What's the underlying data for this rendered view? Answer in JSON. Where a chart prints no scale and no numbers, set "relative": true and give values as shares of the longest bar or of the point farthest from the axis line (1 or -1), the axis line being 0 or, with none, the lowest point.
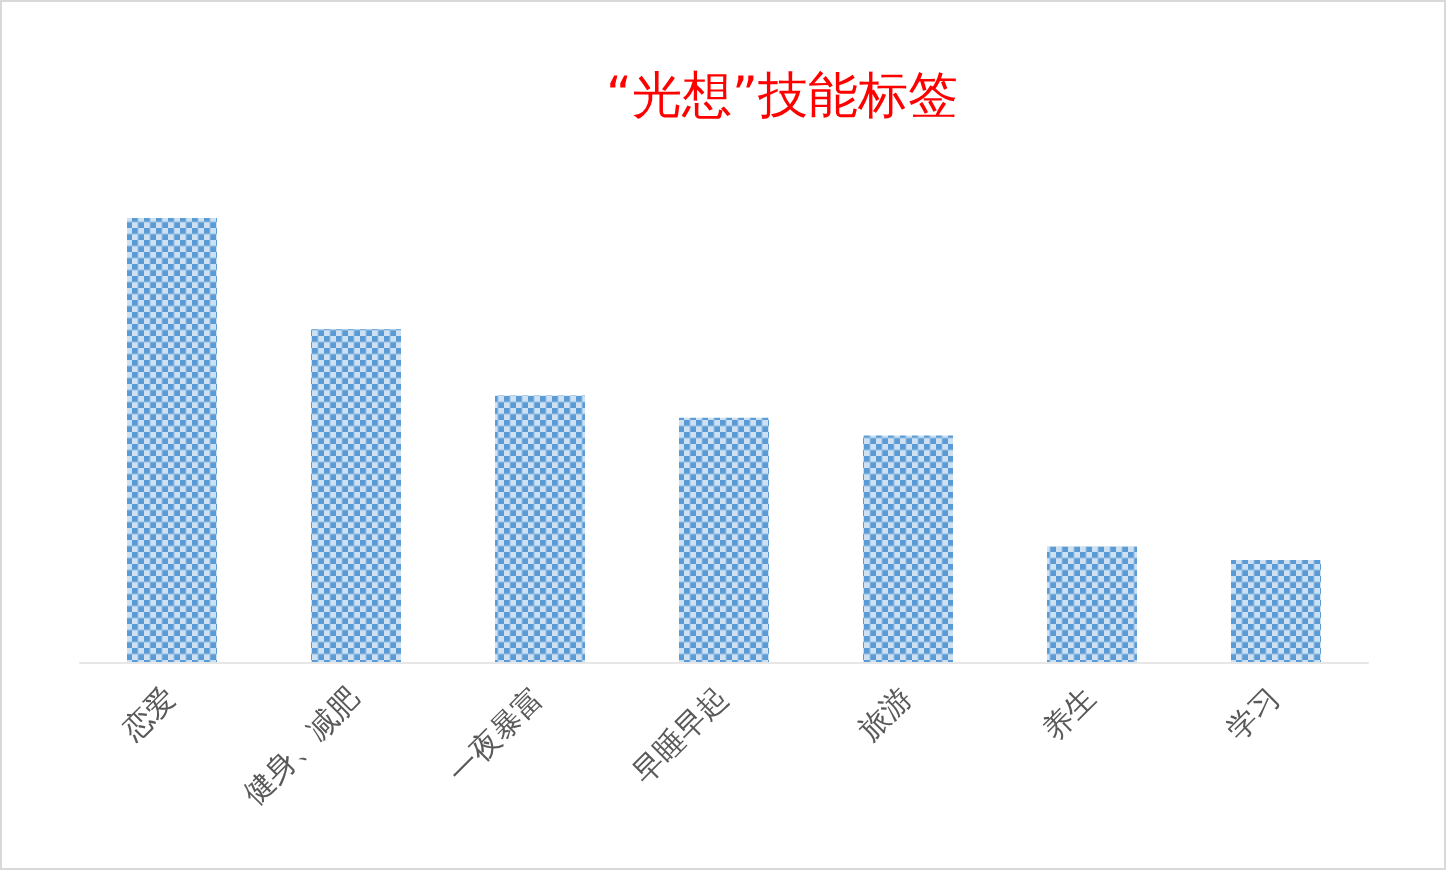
{
  "chart_data": {
    "type": "bar",
    "title": "“光想”技能标签",
    "categories": [
      "恋爱",
      "健身、减肥",
      "一夜暴富",
      "早睡早起",
      "旅游",
      "养生",
      "学习"
    ],
    "values": [
      1,
      0.75,
      0.6,
      0.55,
      0.51,
      0.26,
      0.23
    ],
    "color": "#5b9bd5",
    "relative": true
  }
}
